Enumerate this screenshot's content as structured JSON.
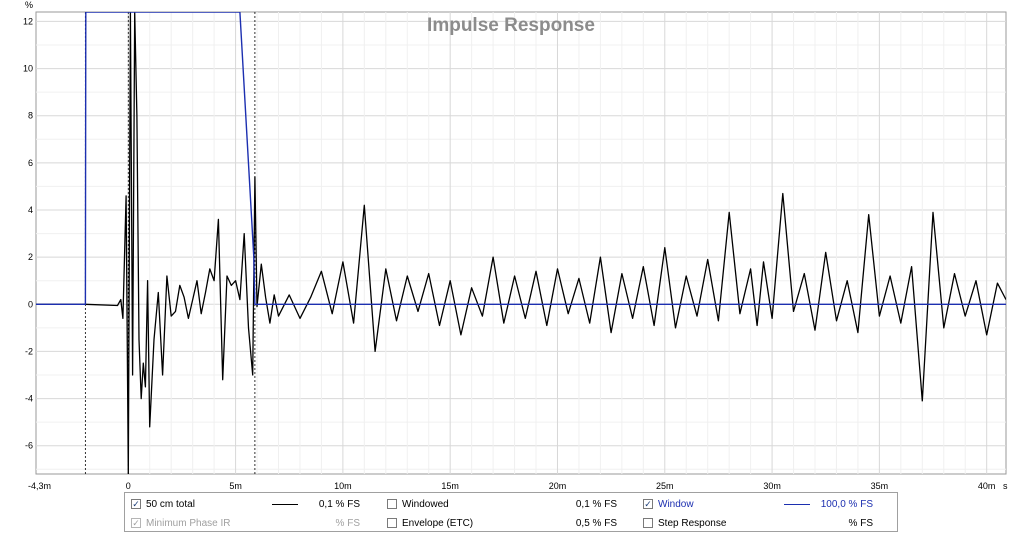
{
  "chart_data": {
    "type": "line",
    "title": "Impulse Response",
    "ylabel": "%",
    "xlim": [
      -4.3,
      40.9
    ],
    "ylim": [
      -7.2,
      12.4
    ],
    "y_ticks": [
      -6,
      -4,
      -2,
      0,
      2,
      4,
      6,
      8,
      10,
      12
    ],
    "y_tick_labels": [
      "-6",
      "-4",
      "-2",
      "0",
      "2",
      "4",
      "6",
      "8",
      "10",
      "12"
    ],
    "x_ticks": [
      -4.3,
      0,
      5,
      10,
      15,
      20,
      25,
      30,
      35,
      40
    ],
    "x_tick_labels": [
      "-4,3m",
      "0",
      "5m",
      "10m",
      "15m",
      "20m",
      "25m",
      "30m",
      "35m",
      "40m"
    ],
    "x_unit": "s",
    "grid": true,
    "markers_x": [
      -2.0,
      0,
      5.9
    ],
    "series": [
      {
        "name": "50 cm total",
        "color": "#000000",
        "x": [
          -4.3,
          -2.0,
          -0.5,
          -0.35,
          -0.25,
          -0.1,
          0.0,
          0.1,
          0.2,
          0.3,
          0.4,
          0.5,
          0.6,
          0.7,
          0.8,
          0.9,
          1.0,
          1.2,
          1.4,
          1.6,
          1.8,
          2.0,
          2.2,
          2.4,
          2.6,
          2.8,
          3.0,
          3.2,
          3.4,
          3.6,
          3.8,
          4.0,
          4.2,
          4.4,
          4.6,
          4.8,
          5.0,
          5.2,
          5.4,
          5.6,
          5.8,
          5.9,
          6.0,
          6.2,
          6.4,
          6.6,
          6.8,
          7.0,
          7.5,
          8.0,
          8.5,
          9.0,
          9.5,
          10.0,
          10.5,
          11.0,
          11.5,
          12.0,
          12.5,
          13.0,
          13.5,
          14.0,
          14.5,
          15.0,
          15.5,
          16.0,
          16.5,
          17.0,
          17.5,
          18.0,
          18.5,
          19.0,
          19.5,
          20.0,
          20.5,
          21.0,
          21.5,
          22.0,
          22.5,
          23.0,
          23.5,
          24.0,
          24.5,
          25.0,
          25.5,
          26.0,
          26.5,
          27.0,
          27.5,
          28.0,
          28.5,
          29.0,
          29.3,
          29.6,
          30.0,
          30.5,
          31.0,
          31.5,
          32.0,
          32.5,
          33.0,
          33.5,
          34.0,
          34.5,
          35.0,
          35.5,
          36.0,
          36.5,
          37.0,
          37.5,
          38.0,
          38.5,
          39.0,
          39.5,
          40.0,
          40.5,
          40.9
        ],
        "y": [
          0.0,
          0.0,
          -0.05,
          0.2,
          -0.6,
          4.6,
          -7.2,
          12.4,
          -3.0,
          12.4,
          8.0,
          -1.5,
          -4.0,
          -2.5,
          -3.5,
          1.0,
          -5.2,
          -1.5,
          0.5,
          -3.0,
          1.2,
          -0.5,
          -0.3,
          0.8,
          0.3,
          -0.6,
          0.2,
          1.0,
          -0.4,
          0.5,
          1.5,
          1.0,
          3.6,
          -3.2,
          1.2,
          0.8,
          1.0,
          0.2,
          3.0,
          -1.0,
          -3.0,
          5.4,
          -0.1,
          1.7,
          0.3,
          -0.8,
          0.4,
          -0.5,
          0.4,
          -0.6,
          0.3,
          1.4,
          -0.4,
          1.8,
          -0.8,
          4.2,
          -2.0,
          1.5,
          -0.7,
          1.2,
          -0.3,
          1.3,
          -0.9,
          1.0,
          -1.3,
          0.7,
          -0.5,
          2.0,
          -0.8,
          1.2,
          -0.6,
          1.4,
          -0.9,
          1.5,
          -0.4,
          1.1,
          -0.8,
          2.0,
          -1.2,
          1.3,
          -0.6,
          1.6,
          -0.9,
          2.4,
          -1.0,
          1.2,
          -0.5,
          1.9,
          -0.7,
          3.9,
          -0.4,
          1.5,
          -0.9,
          1.8,
          -0.6,
          4.7,
          -0.3,
          1.3,
          -1.1,
          2.2,
          -0.7,
          1.0,
          -1.2,
          3.8,
          -0.5,
          1.2,
          -0.8,
          1.6,
          -4.1,
          3.9,
          -1.0,
          1.3,
          -0.5,
          1.0,
          -1.3,
          0.9,
          0.2
        ]
      },
      {
        "name": "Window",
        "color": "#1c2fb0",
        "x": [
          -4.3,
          -2.0,
          -1.98,
          5.2,
          5.85,
          5.9,
          6.0,
          40.9
        ],
        "y": [
          0.0,
          0.0,
          12.4,
          12.4,
          2.0,
          0.0,
          0.0,
          0.0
        ]
      }
    ]
  },
  "legend": {
    "items": [
      {
        "label": "50 cm total",
        "checked": true,
        "disabled": false,
        "color": "#000000",
        "scale": "0,1 % FS"
      },
      {
        "label": "Minimum Phase IR",
        "checked": true,
        "disabled": true,
        "color": "",
        "scale": "% FS"
      },
      {
        "label": "Windowed",
        "checked": false,
        "disabled": false,
        "color": "",
        "scale": "0,1 % FS"
      },
      {
        "label": "Envelope (ETC)",
        "checked": false,
        "disabled": false,
        "color": "",
        "scale": "0,5 % FS"
      },
      {
        "label": "Window",
        "checked": true,
        "disabled": false,
        "color": "#1c2fb0",
        "scale": "100,0 % FS"
      },
      {
        "label": "Step Response",
        "checked": false,
        "disabled": false,
        "color": "",
        "scale": "% FS"
      }
    ]
  }
}
